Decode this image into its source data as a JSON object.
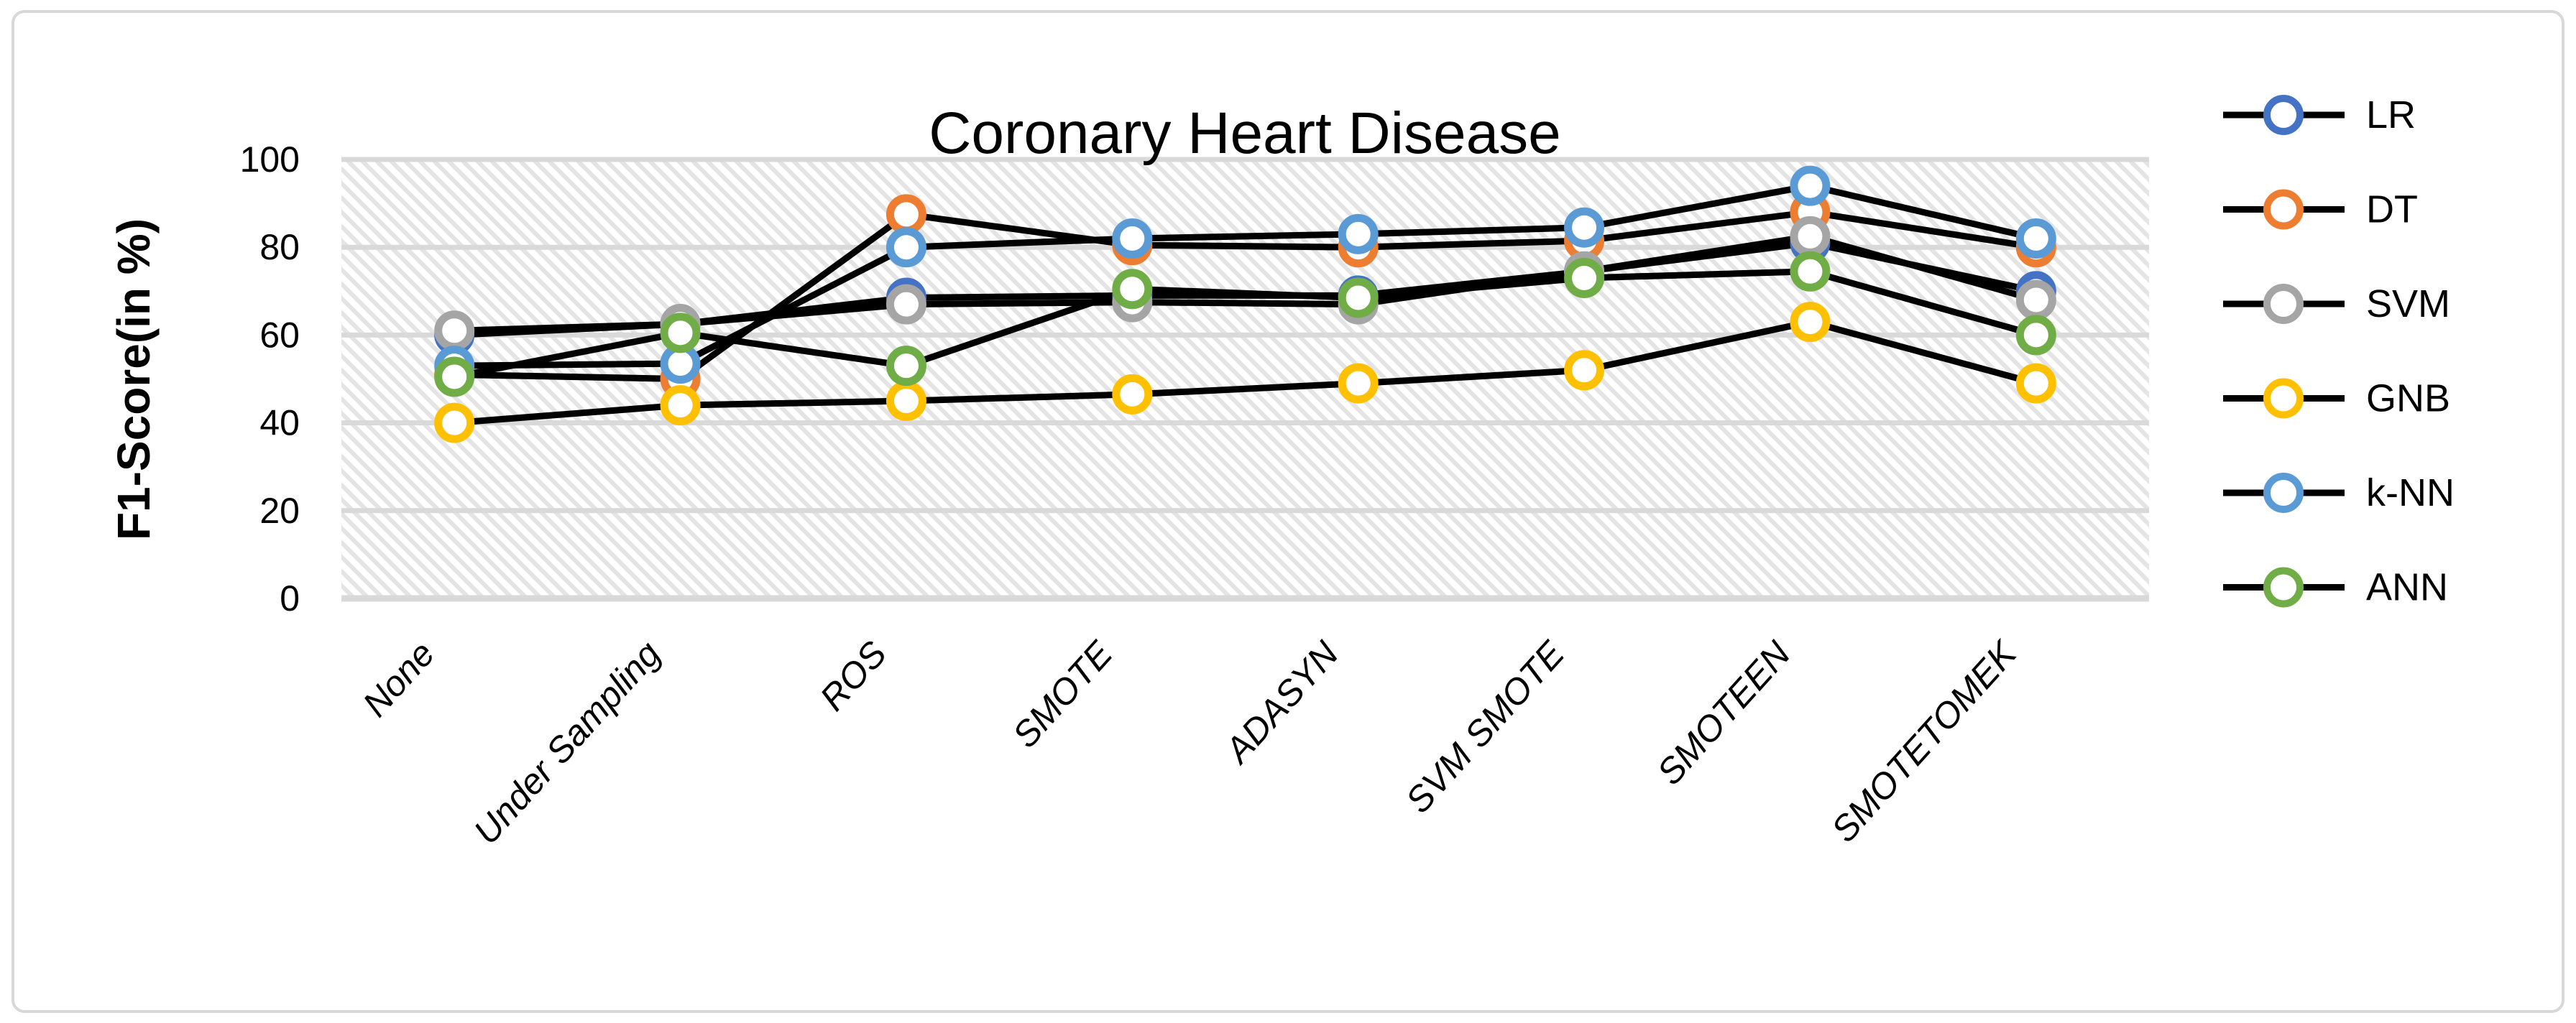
{
  "window": {
    "background": "#ffffff",
    "card_border_color": "#d8d8d8"
  },
  "chart_data": {
    "type": "line",
    "title": "Coronary Heart Disease",
    "xlabel": "",
    "ylabel": "F1-Score(in %)",
    "ylim": [
      0,
      100
    ],
    "yticks": [
      0,
      20,
      40,
      60,
      80,
      100
    ],
    "grid": "horizontal-major",
    "gridline_color": "#d9d9d9",
    "plot_background": "light-downward-diagonal-hatch",
    "hatch_color": "#e4e4e4",
    "line_color": "#000000",
    "marker_style": "open-ring-white-fill",
    "legend_position": "right",
    "categories": [
      "None",
      "Under Sampling",
      "ROS",
      "SMOTE",
      "ADASYN",
      "SVM SMOTE",
      "SMOTEEN",
      "SMOTETOMEK"
    ],
    "series": [
      {
        "name": "LR",
        "color": "#4472C4",
        "values": [
          60,
          62.5,
          68.5,
          69,
          69,
          74.5,
          81,
          70
        ]
      },
      {
        "name": "DT",
        "color": "#ED7D31",
        "values": [
          51,
          50,
          87.5,
          80.5,
          80,
          81.5,
          88,
          80
        ]
      },
      {
        "name": "SVM",
        "color": "#A5A5A5",
        "values": [
          61,
          62.5,
          67,
          67.5,
          67,
          74.5,
          82.5,
          68
        ]
      },
      {
        "name": "GNB",
        "color": "#FFC000",
        "values": [
          40,
          44,
          45,
          46.5,
          49,
          52,
          63,
          49
        ]
      },
      {
        "name": "k-NN",
        "color": "#5B9BD5",
        "values": [
          53,
          53.5,
          80,
          82,
          83,
          84.5,
          94,
          82
        ]
      },
      {
        "name": "ANN",
        "color": "#70AD47",
        "values": [
          50.5,
          60.5,
          53,
          70.5,
          68.5,
          73,
          74.5,
          60
        ]
      }
    ]
  }
}
